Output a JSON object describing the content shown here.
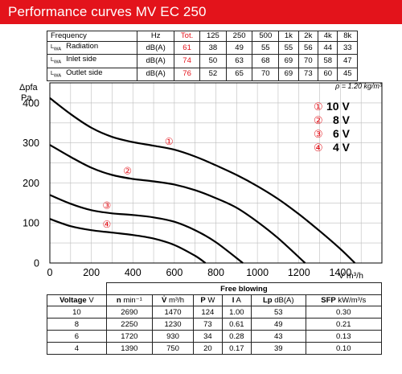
{
  "header": {
    "title": "Performance curves MV EC 250"
  },
  "spl_table": {
    "columns": [
      "Frequency",
      "Hz",
      "Tot.",
      "125",
      "250",
      "500",
      "1k",
      "2k",
      "4k",
      "8k"
    ],
    "lwa_prefix": "L",
    "lwa_sub": "WA",
    "rows": [
      {
        "label": "Radiation",
        "unit": "dB(A)",
        "total": "61",
        "values": [
          "38",
          "49",
          "55",
          "55",
          "56",
          "44",
          "33"
        ]
      },
      {
        "label": "Inlet side",
        "unit": "dB(A)",
        "total": "74",
        "values": [
          "50",
          "63",
          "68",
          "69",
          "70",
          "58",
          "47"
        ]
      },
      {
        "label": "Outlet side",
        "unit": "dB(A)",
        "total": "76",
        "values": [
          "52",
          "65",
          "70",
          "69",
          "73",
          "60",
          "45"
        ]
      }
    ]
  },
  "chart_data": {
    "type": "line",
    "title": "",
    "xlabel": "V m³/h",
    "ylabel_main": "Δpfa",
    "ylabel_unit": "Pa",
    "density_note": "ρ = 1.20 kg/m³",
    "xlim": [
      0,
      1600
    ],
    "ylim": [
      0,
      450
    ],
    "xticks": [
      "0",
      "200",
      "400",
      "600",
      "800",
      "1000",
      "1200",
      "1400"
    ],
    "yticks": [
      "0",
      "100",
      "200",
      "300",
      "400"
    ],
    "grid": true,
    "legend": [
      {
        "marker": "①",
        "label": "10 V"
      },
      {
        "marker": "②",
        "label": "8 V"
      },
      {
        "marker": "③",
        "label": "6 V"
      },
      {
        "marker": "④",
        "label": "4 V"
      }
    ],
    "series": [
      {
        "marker": "①",
        "x": [
          0,
          100,
          200,
          300,
          400,
          500,
          600,
          700,
          800,
          900,
          1000,
          1100,
          1200,
          1300,
          1400,
          1470
        ],
        "y": [
          412,
          372,
          338,
          315,
          302,
          293,
          283,
          266,
          244,
          220,
          192,
          160,
          122,
          80,
          35,
          0
        ]
      },
      {
        "marker": "②",
        "x": [
          0,
          100,
          200,
          300,
          400,
          500,
          600,
          700,
          800,
          900,
          1000,
          1100,
          1230
        ],
        "y": [
          295,
          265,
          238,
          220,
          210,
          204,
          196,
          182,
          162,
          138,
          103,
          62,
          0
        ]
      },
      {
        "marker": "③",
        "x": [
          0,
          100,
          200,
          300,
          400,
          500,
          600,
          700,
          800,
          930
        ],
        "y": [
          170,
          148,
          132,
          124,
          120,
          114,
          103,
          82,
          52,
          0
        ]
      },
      {
        "marker": "④",
        "x": [
          0,
          100,
          200,
          300,
          400,
          500,
          600,
          700,
          750
        ],
        "y": [
          110,
          92,
          82,
          76,
          70,
          61,
          45,
          18,
          0
        ]
      }
    ]
  },
  "free_blowing": {
    "title": "Free blowing",
    "headers": [
      {
        "sym": "Voltage",
        "unit": "V"
      },
      {
        "sym": "n",
        "unit": "min⁻¹"
      },
      {
        "sym": "V̇",
        "unit": "m³/h"
      },
      {
        "sym": "P",
        "unit": "W"
      },
      {
        "sym": "I",
        "unit": "A"
      },
      {
        "sym": "Lp",
        "unit": "dB(A)"
      },
      {
        "sym": "SFP",
        "unit": "kW/m³/s"
      }
    ],
    "rows": [
      [
        "10",
        "2690",
        "1470",
        "124",
        "1.00",
        "53",
        "0.30"
      ],
      [
        "8",
        "2250",
        "1230",
        "73",
        "0.61",
        "49",
        "0.21"
      ],
      [
        "6",
        "1720",
        "930",
        "34",
        "0.28",
        "43",
        "0.13"
      ],
      [
        "4",
        "1390",
        "750",
        "20",
        "0.17",
        "39",
        "0.10"
      ]
    ]
  }
}
